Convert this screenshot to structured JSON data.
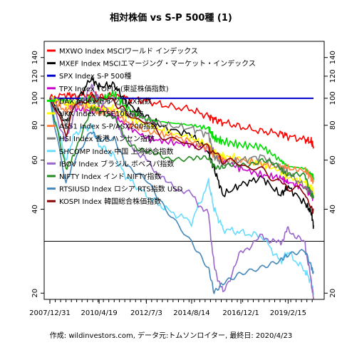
{
  "chart_data": {
    "type": "line",
    "title": "相対株価 vs S-P 500種 (1)",
    "footer": "作成: wildinvestors.com, データ元:トムソンロイター, 最終日: 2020/4/23",
    "y_scale": "log",
    "ylim": [
      19,
      160
    ],
    "y_ticks": [
      20,
      40,
      60,
      80,
      100,
      120,
      140
    ],
    "x_range": [
      "2007/12/31",
      "2020/4/23"
    ],
    "x_tick_labels": [
      "2007/12/31",
      "2010/4/19",
      "2012/7/3",
      "2014/8/14",
      "2016/12/1",
      "2019/2/15"
    ],
    "horizontal_rule": 30.7,
    "grid": false,
    "legend_position": "top-left",
    "x": [
      "2007/12/31",
      "2008/10/1",
      "2009/3/1",
      "2009/12/1",
      "2010/4/19",
      "2011/1/1",
      "2011/8/1",
      "2012/7/3",
      "2013/6/1",
      "2014/8/14",
      "2015/6/1",
      "2015/9/1",
      "2016/2/1",
      "2016/12/1",
      "2017/12/1",
      "2018/10/1",
      "2019/2/15",
      "2019/12/1",
      "2020/3/15",
      "2020/4/23"
    ],
    "series": [
      {
        "name": "MXWO Index MSCIワールド インデックス",
        "color": "#ff0000",
        "values": [
          100,
          103,
          102,
          103,
          101,
          102,
          100,
          98,
          94,
          91,
          86,
          84,
          82,
          79,
          76,
          75,
          73,
          71,
          70,
          67
        ]
      },
      {
        "name": "MXEF Index MSCIエマージング・マーケット・インデックス",
        "color": "#000000",
        "values": [
          100,
          82,
          95,
          118,
          110,
          112,
          96,
          86,
          78,
          74,
          64,
          56,
          45,
          49,
          52,
          45,
          48,
          42,
          39,
          35
        ]
      },
      {
        "name": "SPX Index S-P 500種",
        "color": "#0000cc",
        "values": [
          100,
          100,
          100,
          100,
          100,
          100,
          100,
          100,
          100,
          100,
          100,
          100,
          100,
          100,
          100,
          100,
          100,
          100,
          100,
          100
        ]
      },
      {
        "name": "TPX Index TOPIX (東証株価指数)",
        "color": "#cc00cc",
        "values": [
          100,
          95,
          92,
          90,
          93,
          86,
          80,
          72,
          70,
          68,
          66,
          64,
          60,
          56,
          53,
          52,
          50,
          48,
          45,
          44
        ]
      },
      {
        "name": "DAX Index ドイツ DAX指数",
        "color": "#00dd00",
        "values": [
          100,
          98,
          96,
          100,
          98,
          104,
          92,
          84,
          82,
          80,
          78,
          72,
          70,
          68,
          67,
          60,
          57,
          56,
          53,
          52
        ]
      },
      {
        "name": "UKX Index FTSE100指数",
        "color": "#ffff00",
        "values": [
          100,
          95,
          96,
          94,
          92,
          92,
          86,
          80,
          76,
          72,
          68,
          64,
          62,
          61,
          58,
          55,
          52,
          50,
          48,
          46
        ]
      },
      {
        "name": "AS51 Index S-P/ASX200指数",
        "color": "#ff8040",
        "values": [
          100,
          90,
          95,
          92,
          88,
          90,
          82,
          76,
          74,
          70,
          66,
          62,
          60,
          60,
          58,
          57,
          56,
          55,
          52,
          50
        ]
      },
      {
        "name": "HSI Index 香港 ハンセン指数",
        "color": "#808080",
        "values": [
          100,
          80,
          95,
          100,
          96,
          98,
          88,
          84,
          80,
          78,
          74,
          62,
          58,
          60,
          62,
          56,
          54,
          48,
          46,
          44
        ]
      },
      {
        "name": "SHCOMP Index 中国 上海総合指数",
        "color": "#66ddff",
        "values": [
          100,
          60,
          75,
          80,
          68,
          62,
          52,
          45,
          40,
          36,
          50,
          40,
          34,
          33,
          32,
          26,
          28,
          24,
          22,
          20
        ]
      },
      {
        "name": "IBOV Index ブラジル ボベスパ指数",
        "color": "#9966cc",
        "values": [
          100,
          70,
          90,
          110,
          100,
          85,
          70,
          60,
          50,
          45,
          38,
          25,
          20,
          28,
          32,
          30,
          34,
          30,
          22,
          19
        ]
      },
      {
        "name": "NIFTY Index インド NIFTY指数",
        "color": "#228b22",
        "values": [
          100,
          55,
          65,
          90,
          92,
          85,
          70,
          65,
          60,
          62,
          60,
          58,
          56,
          58,
          60,
          56,
          54,
          52,
          46,
          44
        ]
      },
      {
        "name": "RTSIUSD Index ロシア RTS指数 USD",
        "color": "#4488bb",
        "values": [
          100,
          50,
          60,
          75,
          70,
          72,
          58,
          52,
          40,
          30,
          24,
          20,
          22,
          24,
          25,
          26,
          27,
          28,
          25,
          24
        ]
      },
      {
        "name": "KOSPI Index 韓国総合株価指数",
        "color": "#880000",
        "values": [
          100,
          75,
          95,
          100,
          100,
          98,
          88,
          82,
          72,
          68,
          66,
          64,
          60,
          58,
          55,
          50,
          48,
          46,
          40,
          40
        ]
      }
    ]
  }
}
